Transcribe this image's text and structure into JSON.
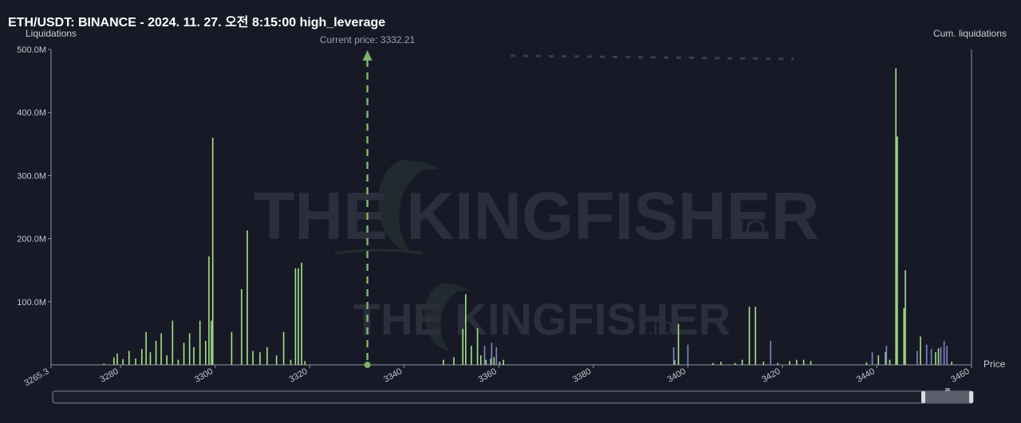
{
  "title": "ETH/USDT: BINANCE - 2024. 11. 27. 오전 8:15:00 high_leverage",
  "left_axis_label": "Liquidations",
  "right_axis_label": "Cum. liquidations",
  "x_axis_label": "Price",
  "current_price_label": "Current price: 3332.21",
  "watermark": {
    "text": "THE KINGFISHER",
    "suffix": ".IO"
  },
  "colors": {
    "background": "#171a26",
    "long_bar": "#a8e08a",
    "short_bar": "#7f86c8",
    "current_price": "#7db36b",
    "axis": "#8f93a0"
  },
  "chart_data": {
    "type": "bar",
    "xlim": [
      3265.3,
      3460
    ],
    "ylim": [
      0,
      500
    ],
    "y_unit": "M",
    "current_price": 3332.21,
    "x_ticks": [
      3265.3,
      3280,
      3300,
      3320,
      3340,
      3360,
      3380,
      3400,
      3420,
      3440,
      3460
    ],
    "y_ticks": [
      100,
      200,
      300,
      400,
      500
    ],
    "y_tick_labels": [
      "100.0M",
      "200.0M",
      "300.0M",
      "400.0M",
      "500.0M"
    ],
    "series": [
      {
        "values": [
          [
            3276.5,
            2
          ],
          [
            3278.6,
            12
          ],
          [
            3279.3,
            18
          ],
          [
            3280.5,
            9
          ],
          [
            3281.8,
            22
          ],
          [
            3283.2,
            10
          ],
          [
            3284.5,
            25
          ],
          [
            3285.4,
            52
          ],
          [
            3286.3,
            20
          ],
          [
            3287.5,
            38
          ],
          [
            3288.6,
            50
          ],
          [
            3289.8,
            15
          ],
          [
            3291.0,
            70
          ],
          [
            3292.2,
            8
          ],
          [
            3293.4,
            35
          ],
          [
            3294.6,
            50
          ],
          [
            3295.5,
            28
          ],
          [
            3296.8,
            70
          ],
          [
            3298.0,
            38
          ],
          [
            3298.7,
            172
          ],
          [
            3299.2,
            70
          ],
          [
            3299.5,
            360
          ],
          [
            3303.5,
            52
          ],
          [
            3305.6,
            120
          ],
          [
            3306.8,
            213
          ],
          [
            3308.0,
            22
          ],
          [
            3309.5,
            20
          ],
          [
            3311.0,
            28
          ],
          [
            3313.0,
            15
          ],
          [
            3314.5,
            52
          ],
          [
            3316.0,
            8
          ],
          [
            3317.0,
            153
          ],
          [
            3317.6,
            153
          ],
          [
            3318.3,
            162
          ],
          [
            3319.0,
            6
          ],
          [
            3348.3,
            8
          ],
          [
            3350.5,
            12
          ],
          [
            3352.4,
            57
          ],
          [
            3353.0,
            112
          ],
          [
            3354.2,
            30
          ],
          [
            3355.5,
            58
          ],
          [
            3356.2,
            15
          ],
          [
            3357.3,
            8
          ],
          [
            3358.3,
            10
          ],
          [
            3359.0,
            12
          ],
          [
            3360.2,
            5
          ],
          [
            3361.0,
            8
          ],
          [
            3397.2,
            8
          ],
          [
            3398.0,
            65
          ],
          [
            3405.3,
            3
          ],
          [
            3407.0,
            5
          ],
          [
            3410.0,
            3
          ],
          [
            3411.5,
            8
          ],
          [
            3413.0,
            92
          ],
          [
            3414.3,
            92
          ],
          [
            3416.0,
            5
          ],
          [
            3419.0,
            3
          ],
          [
            3421.5,
            6
          ],
          [
            3423.0,
            8
          ],
          [
            3424.5,
            8
          ],
          [
            3426.0,
            6
          ],
          [
            3437.8,
            4
          ],
          [
            3440.3,
            15
          ],
          [
            3441.8,
            20
          ],
          [
            3442.7,
            8
          ],
          [
            3444.0,
            470
          ],
          [
            3444.3,
            362
          ],
          [
            3445.7,
            90
          ],
          [
            3446.0,
            150
          ],
          [
            3449.2,
            45
          ],
          [
            3452.4,
            20
          ],
          [
            3453.0,
            26
          ],
          [
            3455.8,
            5
          ]
        ]
      },
      {
        "values": [
          [
            3357.0,
            30
          ],
          [
            3358.5,
            35
          ],
          [
            3359.5,
            28
          ],
          [
            3397.0,
            28
          ],
          [
            3400.0,
            32
          ],
          [
            3417.5,
            38
          ],
          [
            3439.0,
            20
          ],
          [
            3442.0,
            30
          ],
          [
            3448.5,
            22
          ],
          [
            3450.5,
            32
          ],
          [
            3451.5,
            25
          ],
          [
            3453.5,
            28
          ],
          [
            3454.2,
            38
          ],
          [
            3454.8,
            30
          ]
        ]
      }
    ]
  }
}
